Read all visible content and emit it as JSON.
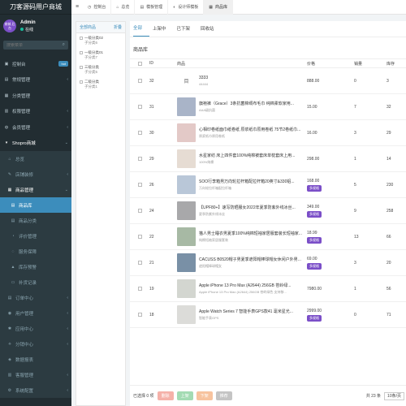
{
  "sidebar": {
    "brand": "刀客源码用户商城",
    "user": {
      "avatar_text": "商城 后台",
      "name": "Admin",
      "status": "在线"
    },
    "search_placeholder": "搜索菜单",
    "items": [
      {
        "icon": "▣",
        "label": "控制台",
        "badge": "hot",
        "type": "top"
      },
      {
        "icon": "▤",
        "label": "常规管理",
        "arrow": "‹",
        "type": "top"
      },
      {
        "icon": "▦",
        "label": "分类管理",
        "type": "top"
      },
      {
        "icon": "▥",
        "label": "权限管理",
        "arrow": "‹",
        "type": "top"
      },
      {
        "icon": "◍",
        "label": "会员管理",
        "arrow": "‹",
        "type": "top"
      },
      {
        "icon": "▾",
        "label": "Shopro商城",
        "arrow": "⌄",
        "type": "open"
      },
      {
        "icon": "⌂",
        "label": "总览",
        "type": "sub"
      },
      {
        "icon": "✎",
        "label": "店铺装修",
        "arrow": "‹",
        "type": "sub"
      },
      {
        "icon": "▦",
        "label": "商品管理",
        "arrow": "⌄",
        "type": "sub-open"
      },
      {
        "icon": "▤",
        "label": "商品库",
        "type": "active"
      },
      {
        "icon": "▤",
        "label": "商品分类",
        "type": "l2"
      },
      {
        "icon": "◔",
        "label": "评价管理",
        "type": "l2"
      },
      {
        "icon": "◌",
        "label": "服务保障",
        "type": "l2"
      },
      {
        "icon": "▲",
        "label": "库存预警",
        "type": "l2"
      },
      {
        "icon": "▭",
        "label": "补货记录",
        "type": "l2"
      },
      {
        "icon": "▤",
        "label": "订单中心",
        "arrow": "‹",
        "type": "sub"
      },
      {
        "icon": "◉",
        "label": "用户管理",
        "arrow": "‹",
        "type": "sub"
      },
      {
        "icon": "✱",
        "label": "应用中心",
        "arrow": "‹",
        "type": "sub"
      },
      {
        "icon": "⟡",
        "label": "分销中心",
        "arrow": "‹",
        "type": "sub"
      },
      {
        "icon": "◈",
        "label": "数据报表",
        "type": "sub"
      },
      {
        "icon": "▥",
        "label": "客服管理",
        "arrow": "‹",
        "type": "sub"
      },
      {
        "icon": "⚙",
        "label": "系统配置",
        "arrow": "‹",
        "type": "sub"
      }
    ]
  },
  "topbar": {
    "tabs": [
      {
        "icon": "◷",
        "label": "控制台"
      },
      {
        "icon": "⌂",
        "label": "总览"
      },
      {
        "icon": "▤",
        "label": "模板管理"
      },
      {
        "icon": "◐",
        "label": "设计师模板"
      },
      {
        "icon": "▦",
        "label": "商品库",
        "active": true
      }
    ]
  },
  "categories": {
    "header": "全部商品",
    "header_right": "折叠",
    "groups": [
      {
        "parent": "一级分类02",
        "children": [
          "子分类6"
        ]
      },
      {
        "parent": "一级分类01",
        "children": [
          "子分类7"
        ]
      },
      {
        "parent": "三级分类",
        "children": [
          "子分类5"
        ]
      },
      {
        "parent": "二级分类",
        "children": [
          "子分类1"
        ]
      }
    ]
  },
  "main": {
    "status_tabs": [
      "全部",
      "上架中",
      "已下架",
      "回收站"
    ],
    "section_title": "商品库",
    "columns": {
      "id": "ID",
      "product": "商品",
      "price": "价格",
      "sales": "销量",
      "stock": "库存"
    },
    "rows": [
      {
        "id": "32",
        "name": "3333",
        "sub": "44444",
        "price": "888.00",
        "sales": "0",
        "stock": "3",
        "multi": false,
        "color": "",
        "thumb_text": "目"
      },
      {
        "id": "31",
        "name": "旗袍裤（Grace）3条抗菌棉绸布毛巾 纯棉柔软家用...",
        "sub": "AAA级抗菌",
        "price": "15.00",
        "sales": "7",
        "stock": "32",
        "multi": false,
        "color": "#a9b4c8"
      },
      {
        "id": "30",
        "name": "心相印卷纸面巾纸卷纸 原浆纸巾原用卷纸 75节2卷纸巾...",
        "sub": "原浆纸巾原用卷纸",
        "price": "16.00",
        "sales": "3",
        "stock": "29",
        "multi": false,
        "color": "#e3c9c7"
      },
      {
        "id": "29",
        "name": "水星家纺 床上四件套100%纯棉被套床单枕套床上用...",
        "sub": "100%纯棉",
        "price": "298.00",
        "sales": "1",
        "stock": "14",
        "multi": false,
        "color": "#e6dcd3"
      },
      {
        "id": "26",
        "name": "SOO行李箱男万向轮拉杆箱配拉杆箱20英寸&330铝...",
        "sub": "万向轮拉杆箱配拉杆箱",
        "price": "168.00",
        "sales": "5",
        "stock": "230",
        "multi": true,
        "color": "#b9c7d8"
      },
      {
        "id": "24",
        "name": "【UPF80+】速写防晒服女2022年夏季防紫外线冰丝...",
        "sub": "夏季防紫外线冰丝",
        "price": "349.00",
        "sales": "9",
        "stock": "258",
        "multi": true,
        "color": "#a8a8aa"
      },
      {
        "id": "22",
        "name": "猫人男士睡衣男夏季100%纯棉短袖家居服套装长短袖家...",
        "sub": "纯棉短袖家居服套装",
        "price": "18.99",
        "sales": "13",
        "stock": "66",
        "multi": true,
        "color": "#a7b9a4"
      },
      {
        "id": "21",
        "name": "CACUSS B0520帽子男夏季遮阳帽棒球帽女休闲户外男...",
        "sub": "遮阳帽棒球帽女",
        "price": "69.00",
        "sales": "3",
        "stock": "20",
        "multi": true,
        "color": "#7990a6"
      },
      {
        "id": "19",
        "name": "Apple iPhone 13 Pro Max (A2644) 256GB 苍岭绿...",
        "sub": "Apple iPhone 13 Pro Max (A2644) 256GB 苍岭绿色 支持移...",
        "price": "7980.00",
        "sales": "1",
        "stock": "56",
        "multi": false,
        "color": "#d3d6d0"
      },
      {
        "id": "18",
        "name": "Apple Watch Series 7 智能手表GPS款41 毫米星光...",
        "sub": "智能手表GPS",
        "price": "2999.00",
        "sales": "0",
        "stock": "71",
        "multi": true,
        "color": "#dcdcd9"
      }
    ],
    "multi_label": "多规格"
  },
  "footer": {
    "selected": "已选择 0 项",
    "btn_delete": "删除",
    "btn_up": "上架",
    "btn_down": "下架",
    "btn_recommend": "推荐",
    "total": "共 23 条",
    "page_size": "10条/页"
  }
}
